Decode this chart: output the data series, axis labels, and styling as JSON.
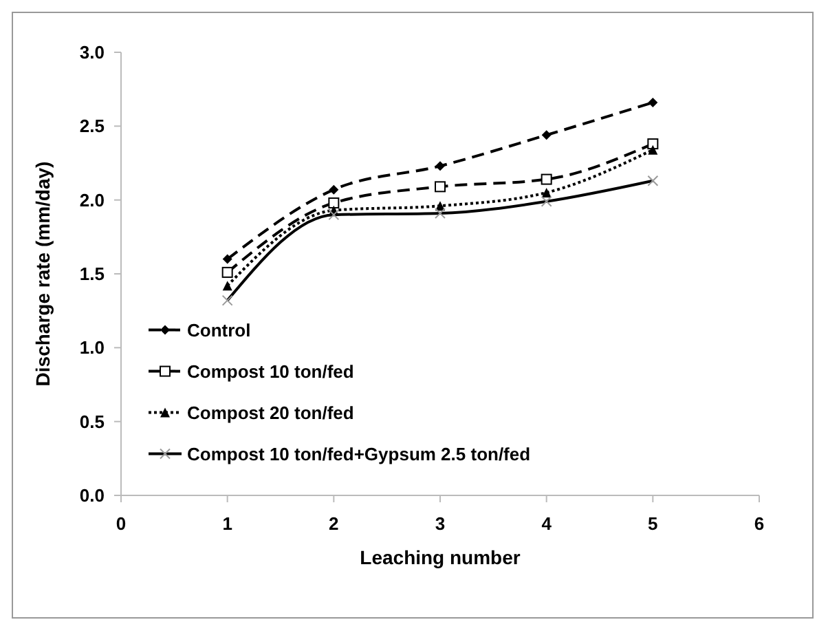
{
  "chart_data": {
    "type": "line",
    "xlabel": "Leaching number",
    "ylabel": "Discharge rate (mm/day)",
    "x": [
      1,
      2,
      3,
      4,
      5
    ],
    "xlim": [
      0,
      6
    ],
    "xticks": [
      0,
      1,
      2,
      3,
      4,
      5,
      6
    ],
    "ylim": [
      0,
      3
    ],
    "yticks": [
      {
        "value": 0,
        "label": "0.0"
      },
      {
        "value": 0.5,
        "label": "0.5"
      },
      {
        "value": 1,
        "label": "1.0"
      },
      {
        "value": 1.5,
        "label": "1.5"
      },
      {
        "value": 2,
        "label": "2.0"
      },
      {
        "value": 2.5,
        "label": "2.5"
      },
      {
        "value": 3,
        "label": "3.0"
      }
    ],
    "grid": false,
    "legend": "left",
    "series": [
      {
        "name": "Control",
        "color": "#000000",
        "marker": "diamond",
        "line_style": "dashed",
        "values": [
          1.6,
          2.07,
          2.23,
          2.44,
          2.66
        ]
      },
      {
        "name": "Compost 10 ton/fed",
        "color": "#000000",
        "marker": "square",
        "line_style": "dashed",
        "values": [
          1.51,
          1.98,
          2.09,
          2.14,
          2.38
        ]
      },
      {
        "name": "Compost 20 ton/fed",
        "color": "#000000",
        "marker": "triangle",
        "line_style": "dotted",
        "values": [
          1.42,
          1.93,
          1.96,
          2.05,
          2.34
        ]
      },
      {
        "name": "Compost 10 ton/fed+Gypsum 2.5 ton/fed",
        "color": "#000000",
        "marker": "cross",
        "line_style": "solid",
        "values": [
          1.32,
          1.9,
          1.91,
          1.99,
          2.13
        ]
      }
    ]
  }
}
